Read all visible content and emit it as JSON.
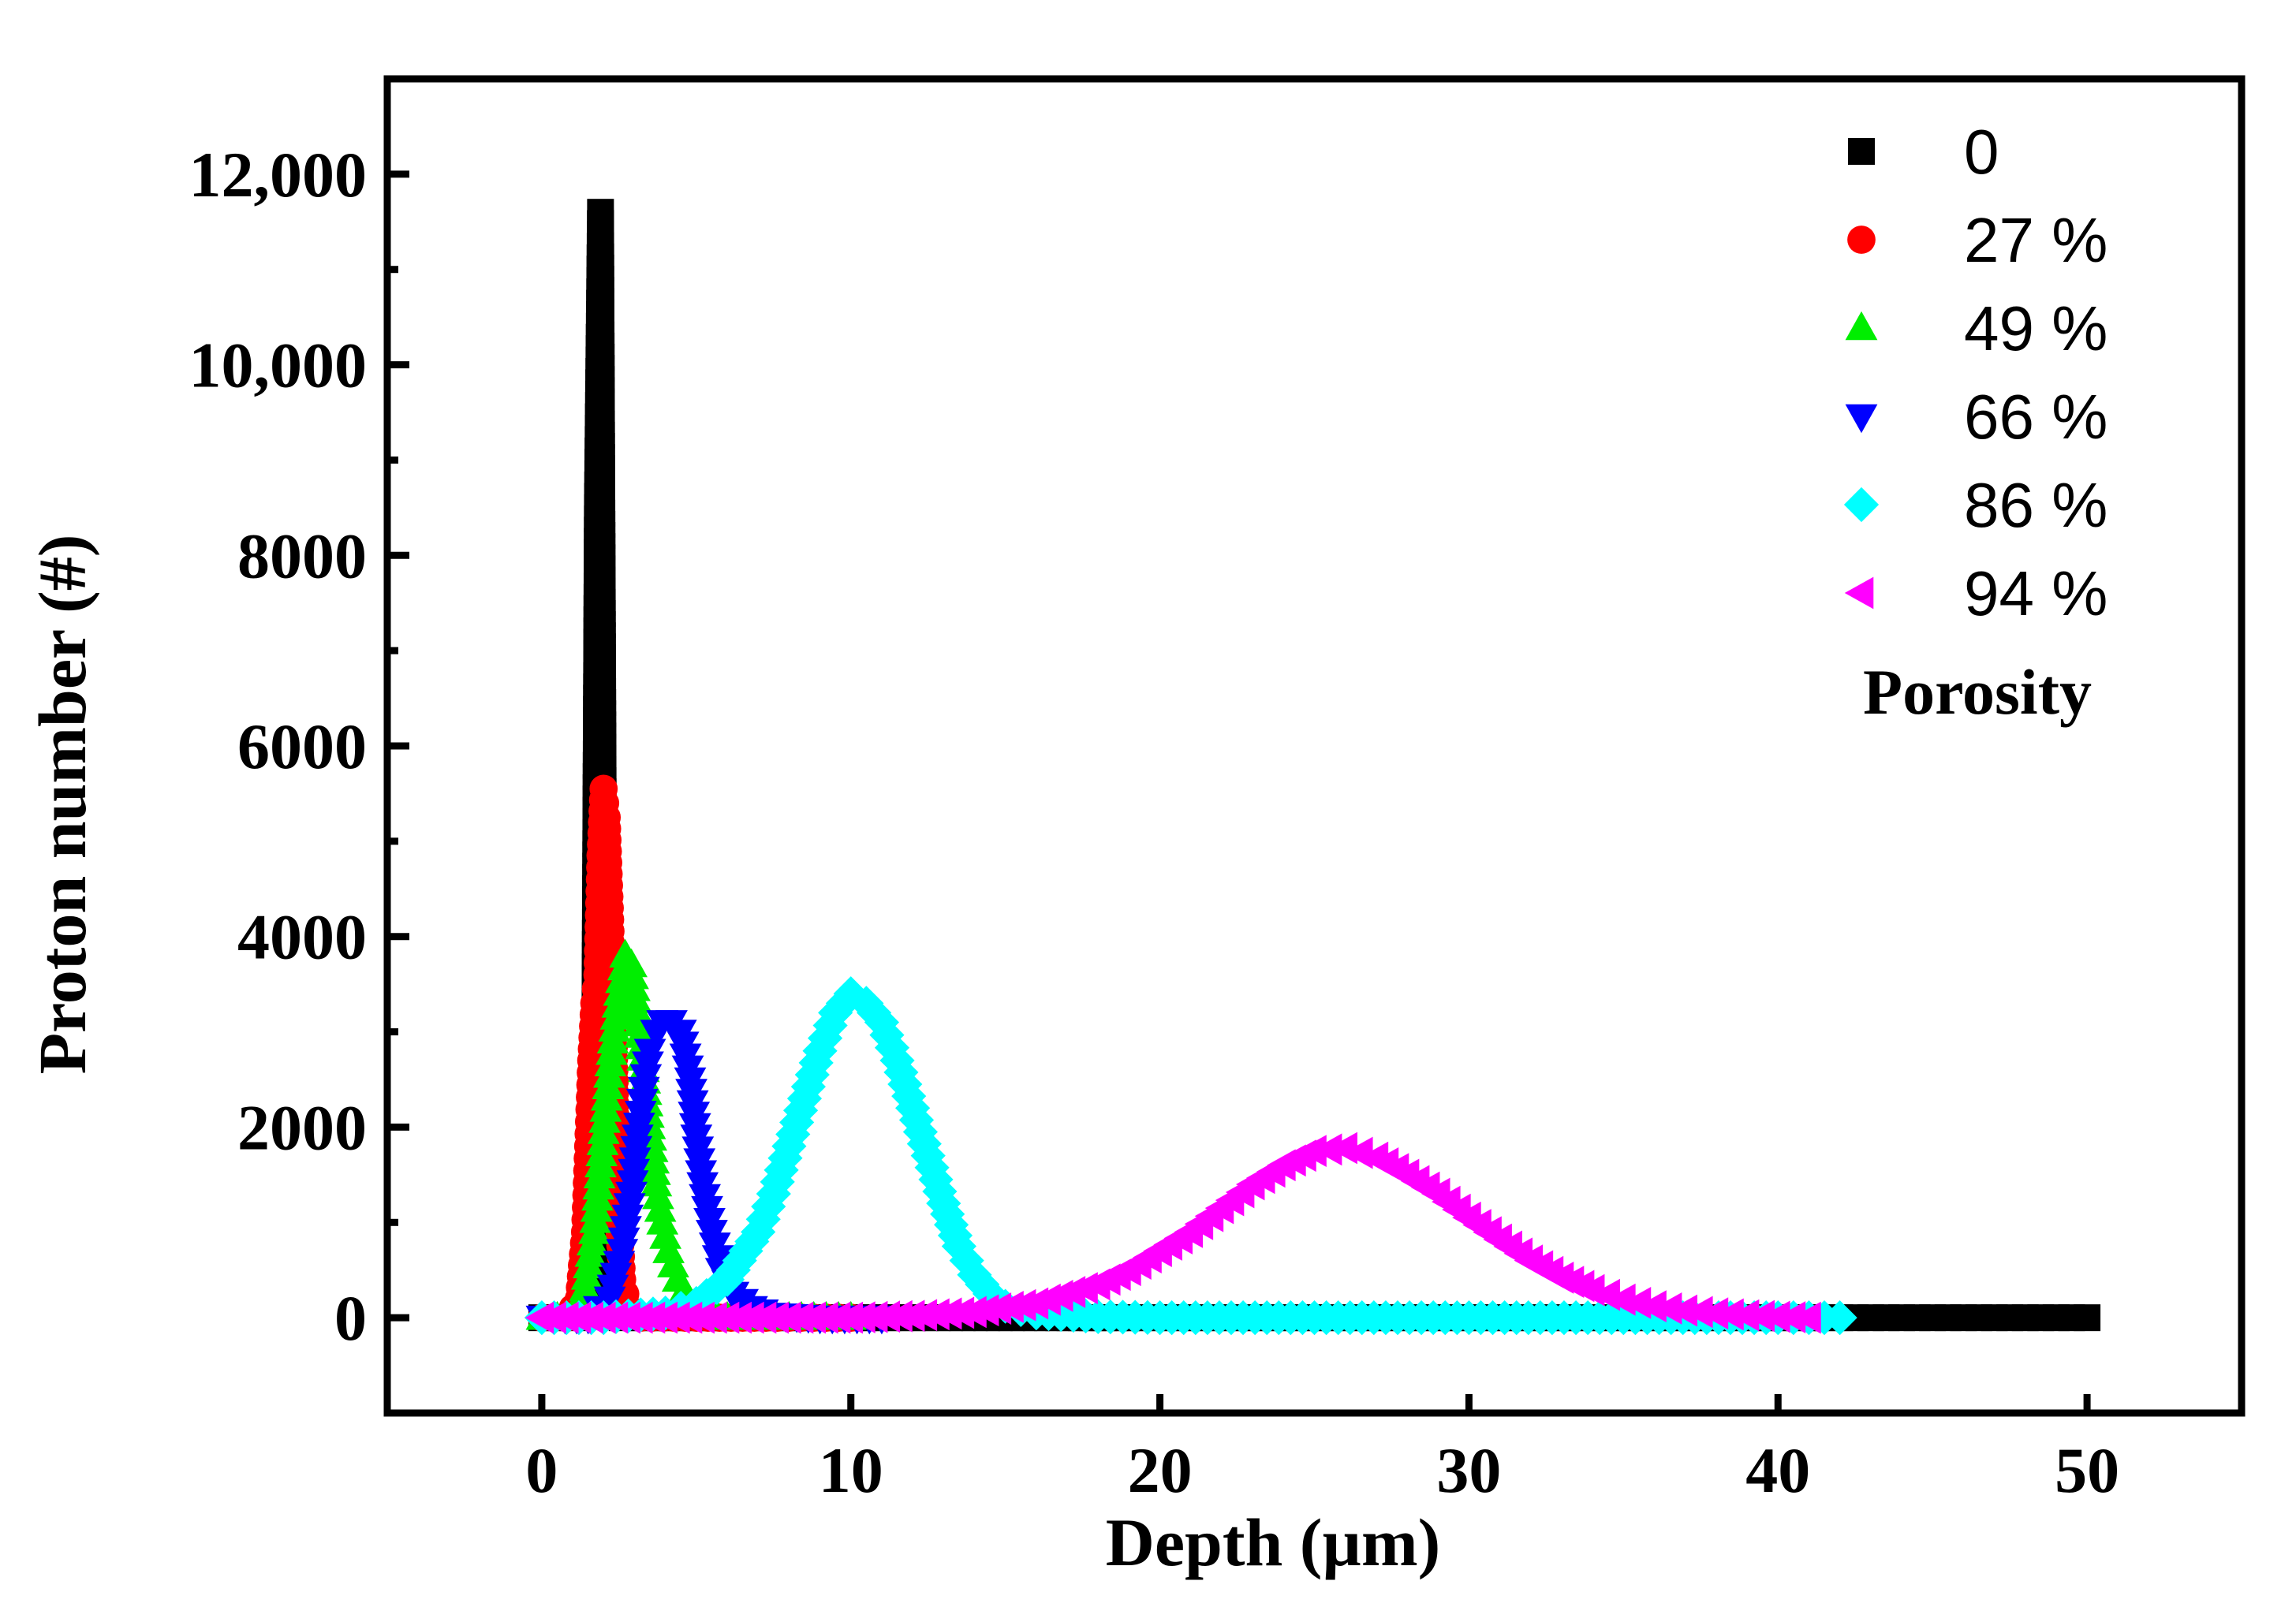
{
  "chart_data": {
    "type": "scatter",
    "title": "",
    "xlabel": "Depth (µm)",
    "ylabel": "Proton number (#)",
    "xlim": [
      -5,
      55
    ],
    "ylim": [
      -1000,
      13000
    ],
    "xticks": [
      0,
      10,
      20,
      30,
      40,
      50
    ],
    "xtick_labels": [
      "0",
      "10",
      "20",
      "30",
      "40",
      "50"
    ],
    "yticks": [
      0,
      2000,
      4000,
      6000,
      8000,
      10000,
      12000
    ],
    "ytick_labels": [
      "0",
      "2000",
      "4000",
      "6000",
      "8000",
      "10,000",
      "12,000"
    ],
    "grid": false,
    "legend_position": "top-right",
    "legend_title": "Porosity",
    "series": [
      {
        "name": "0",
        "marker": "square",
        "color": "#000000",
        "points": [
          [
            0,
            0
          ],
          [
            0.5,
            0
          ],
          [
            1,
            0
          ],
          [
            1.5,
            100
          ],
          [
            1.7,
            1800
          ],
          [
            1.8,
            8500
          ],
          [
            1.9,
            11600
          ],
          [
            2.0,
            4350
          ],
          [
            2.1,
            1000
          ],
          [
            2.3,
            50
          ],
          [
            2.6,
            0
          ],
          [
            4,
            0
          ],
          [
            6,
            0
          ],
          [
            8,
            0
          ],
          [
            10,
            0
          ],
          [
            12,
            0
          ],
          [
            14,
            0
          ],
          [
            16,
            0
          ],
          [
            20,
            0
          ],
          [
            25,
            0
          ],
          [
            30,
            0
          ],
          [
            35,
            0
          ],
          [
            40,
            0
          ],
          [
            42,
            0
          ],
          [
            43,
            0
          ],
          [
            44,
            0
          ],
          [
            45,
            0
          ],
          [
            46,
            0
          ],
          [
            47,
            0
          ],
          [
            48,
            0
          ],
          [
            49,
            0
          ],
          [
            50,
            0
          ]
        ]
      },
      {
        "name": "27 %",
        "marker": "circle",
        "color": "#ff0000",
        "points": [
          [
            0,
            0
          ],
          [
            0.8,
            0
          ],
          [
            1.2,
            200
          ],
          [
            1.4,
            900
          ],
          [
            1.5,
            1800
          ],
          [
            1.6,
            2700
          ],
          [
            1.7,
            3300
          ],
          [
            1.8,
            3600
          ],
          [
            1.9,
            4850
          ],
          [
            2.0,
            5550
          ],
          [
            2.1,
            5250
          ],
          [
            2.2,
            4300
          ],
          [
            2.3,
            3200
          ],
          [
            2.4,
            2000
          ],
          [
            2.5,
            1000
          ],
          [
            2.6,
            400
          ],
          [
            2.8,
            100
          ],
          [
            3.2,
            0
          ],
          [
            5,
            0
          ],
          [
            8,
            0
          ],
          [
            10,
            0
          ]
        ]
      },
      {
        "name": "49 %",
        "marker": "triangle-up",
        "color": "#00ee00",
        "points": [
          [
            0,
            0
          ],
          [
            1,
            0
          ],
          [
            1.4,
            300
          ],
          [
            1.7,
            900
          ],
          [
            1.9,
            1600
          ],
          [
            2.1,
            2300
          ],
          [
            2.3,
            2900
          ],
          [
            2.5,
            3400
          ],
          [
            2.7,
            3800
          ],
          [
            2.9,
            3700
          ],
          [
            3.1,
            3200
          ],
          [
            3.3,
            2600
          ],
          [
            3.5,
            2000
          ],
          [
            3.7,
            1400
          ],
          [
            3.9,
            1000
          ],
          [
            4.1,
            700
          ],
          [
            4.4,
            400
          ],
          [
            4.8,
            150
          ],
          [
            5.3,
            50
          ],
          [
            6,
            0
          ],
          [
            8,
            0
          ],
          [
            10,
            0
          ]
        ]
      },
      {
        "name": "66 %",
        "marker": "triangle-down",
        "color": "#0000ff",
        "points": [
          [
            0,
            0
          ],
          [
            1.5,
            0
          ],
          [
            2.2,
            200
          ],
          [
            2.6,
            700
          ],
          [
            2.9,
            1300
          ],
          [
            3.1,
            1900
          ],
          [
            3.3,
            2400
          ],
          [
            3.5,
            2800
          ],
          [
            3.7,
            3000
          ],
          [
            3.9,
            3100
          ],
          [
            4.2,
            3100
          ],
          [
            4.5,
            3000
          ],
          [
            4.8,
            2500
          ],
          [
            5.0,
            1900
          ],
          [
            5.2,
            1400
          ],
          [
            5.5,
            900
          ],
          [
            5.8,
            500
          ],
          [
            6.2,
            250
          ],
          [
            6.8,
            100
          ],
          [
            7.5,
            30
          ],
          [
            9,
            0
          ],
          [
            11,
            0
          ]
        ]
      },
      {
        "name": "86 %",
        "marker": "diamond",
        "color": "#00ffff",
        "points": [
          [
            0,
            0
          ],
          [
            2,
            0
          ],
          [
            4,
            50
          ],
          [
            5,
            150
          ],
          [
            6,
            400
          ],
          [
            7,
            900
          ],
          [
            7.5,
            1300
          ],
          [
            8,
            1800
          ],
          [
            8.5,
            2300
          ],
          [
            9,
            2800
          ],
          [
            9.5,
            3200
          ],
          [
            10,
            3400
          ],
          [
            10.5,
            3300
          ],
          [
            11,
            3100
          ],
          [
            11.5,
            2700
          ],
          [
            12,
            2200
          ],
          [
            12.5,
            1700
          ],
          [
            13,
            1200
          ],
          [
            13.5,
            750
          ],
          [
            14,
            450
          ],
          [
            14.5,
            250
          ],
          [
            15,
            120
          ],
          [
            16,
            50
          ],
          [
            18,
            10
          ],
          [
            20,
            0
          ],
          [
            25,
            0
          ],
          [
            30,
            0
          ],
          [
            35,
            0
          ],
          [
            40,
            0
          ],
          [
            41,
            0
          ],
          [
            42,
            0
          ]
        ]
      },
      {
        "name": "94 %",
        "marker": "triangle-left",
        "color": "#ff00ff",
        "points": [
          [
            0,
            0
          ],
          [
            2,
            0
          ],
          [
            4,
            0
          ],
          [
            6,
            0
          ],
          [
            8,
            0
          ],
          [
            10,
            0
          ],
          [
            12,
            20
          ],
          [
            14,
            60
          ],
          [
            16,
            150
          ],
          [
            18,
            350
          ],
          [
            19,
            500
          ],
          [
            20,
            700
          ],
          [
            21,
            900
          ],
          [
            22,
            1150
          ],
          [
            23,
            1400
          ],
          [
            24,
            1600
          ],
          [
            25,
            1750
          ],
          [
            26,
            1780
          ],
          [
            27,
            1680
          ],
          [
            28,
            1500
          ],
          [
            29,
            1300
          ],
          [
            30,
            1050
          ],
          [
            31,
            820
          ],
          [
            32,
            600
          ],
          [
            33,
            420
          ],
          [
            34,
            290
          ],
          [
            35,
            190
          ],
          [
            36,
            120
          ],
          [
            37,
            75
          ],
          [
            38,
            45
          ],
          [
            39,
            25
          ],
          [
            40,
            10
          ],
          [
            41,
            0
          ]
        ]
      }
    ]
  }
}
